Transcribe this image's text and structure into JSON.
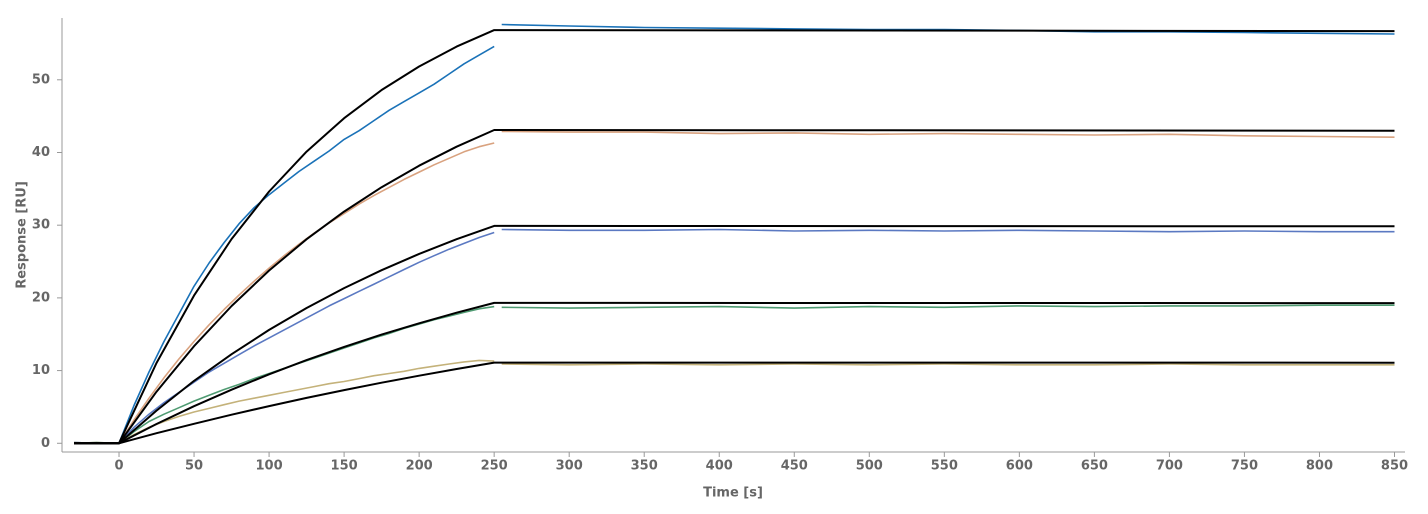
{
  "chart_data": {
    "type": "line",
    "xlabel": "Time [s]",
    "ylabel": "Response [RU]",
    "xlim": [
      -38,
      857
    ],
    "ylim": [
      -1.2,
      58.5
    ],
    "xticks": [
      0,
      50,
      100,
      150,
      200,
      250,
      300,
      350,
      400,
      450,
      500,
      550,
      600,
      650,
      700,
      750,
      800,
      850
    ],
    "yticks": [
      0,
      10,
      20,
      30,
      40,
      50
    ],
    "x": [
      -30,
      -15,
      0,
      10,
      20,
      30,
      40,
      50,
      60,
      70,
      80,
      90,
      100,
      110,
      120,
      130,
      140,
      150,
      160,
      170,
      180,
      190,
      200,
      210,
      220,
      230,
      240,
      250,
      251,
      255,
      300,
      350,
      400,
      450,
      500,
      550,
      600,
      650,
      700,
      750,
      800,
      850
    ],
    "series": [
      {
        "color": "#1a72b8",
        "values": [
          0.1,
          0.0,
          0,
          5.2,
          9.8,
          14.0,
          17.8,
          21.6,
          24.8,
          27.6,
          30.2,
          32.4,
          34.2,
          35.8,
          37.4,
          38.8,
          40.2,
          41.8,
          43.0,
          44.4,
          45.8,
          47.0,
          48.2,
          49.4,
          50.8,
          52.2,
          53.4,
          54.6,
          null,
          57.6,
          57.4,
          57.2,
          57.1,
          57.0,
          56.9,
          56.9,
          56.8,
          56.6,
          56.6,
          56.5,
          56.4,
          56.3
        ]
      },
      {
        "color": "#d9a27f",
        "values": [
          0.0,
          0.1,
          0,
          3.2,
          6.2,
          9.0,
          11.6,
          14.0,
          16.3,
          18.4,
          20.4,
          22.3,
          24.1,
          25.8,
          27.4,
          28.9,
          30.3,
          31.6,
          32.9,
          34.1,
          35.2,
          36.3,
          37.3,
          38.3,
          39.2,
          40.1,
          40.8,
          41.3,
          null,
          42.9,
          42.8,
          42.8,
          42.6,
          42.7,
          42.5,
          42.6,
          42.5,
          42.4,
          42.5,
          42.3,
          42.2,
          42.1
        ]
      },
      {
        "color": "#5b79c2",
        "values": [
          0.1,
          0.0,
          0,
          2.2,
          4.0,
          5.6,
          7.0,
          8.4,
          9.8,
          11.0,
          12.2,
          13.4,
          14.5,
          15.6,
          16.7,
          17.8,
          18.9,
          19.9,
          20.9,
          21.9,
          22.9,
          23.9,
          24.9,
          25.8,
          26.7,
          27.5,
          28.3,
          29.0,
          null,
          29.4,
          29.3,
          29.3,
          29.4,
          29.2,
          29.3,
          29.2,
          29.3,
          29.2,
          29.1,
          29.2,
          29.1,
          29.1
        ]
      },
      {
        "color": "#4f9b72",
        "values": [
          0.0,
          0.1,
          0,
          1.6,
          3.0,
          4.0,
          4.9,
          5.8,
          6.6,
          7.4,
          8.1,
          8.9,
          9.6,
          10.3,
          11.0,
          11.7,
          12.4,
          13.1,
          13.8,
          14.5,
          15.1,
          15.8,
          16.4,
          17.0,
          17.5,
          18.0,
          18.5,
          18.8,
          null,
          18.7,
          18.6,
          18.7,
          18.8,
          18.6,
          18.8,
          18.7,
          18.9,
          18.8,
          18.9,
          18.9,
          19.0,
          19.0
        ]
      },
      {
        "color": "#c4b27a",
        "values": [
          0.1,
          0.0,
          0,
          1.2,
          2.2,
          3.0,
          3.7,
          4.3,
          4.8,
          5.3,
          5.8,
          6.2,
          6.6,
          7.0,
          7.4,
          7.8,
          8.2,
          8.5,
          8.9,
          9.3,
          9.6,
          9.9,
          10.3,
          10.6,
          10.9,
          11.2,
          11.4,
          11.3,
          null,
          10.9,
          10.8,
          10.9,
          10.8,
          10.9,
          10.8,
          10.9,
          10.8,
          10.8,
          10.9,
          10.8,
          10.8,
          10.8
        ]
      }
    ],
    "fit_x": [
      -30,
      0,
      25,
      50,
      75,
      100,
      125,
      150,
      175,
      200,
      225,
      250,
      850
    ],
    "fits": [
      {
        "color": "#000000",
        "values": [
          0,
          0,
          11.04,
          20.32,
          28.1,
          34.63,
          40.12,
          44.72,
          48.59,
          51.83,
          54.56,
          56.84,
          56.7
        ]
      },
      {
        "color": "#000000",
        "values": [
          0,
          0,
          7.1,
          13.36,
          18.89,
          23.77,
          28.07,
          31.87,
          35.22,
          38.18,
          40.79,
          43.09,
          43.0
        ]
      },
      {
        "color": "#000000",
        "values": [
          0,
          0,
          4.5,
          8.58,
          12.26,
          15.59,
          18.61,
          21.34,
          23.81,
          26.05,
          28.07,
          29.9,
          29.85
        ]
      },
      {
        "color": "#000000",
        "values": [
          0,
          0,
          2.65,
          5.1,
          7.37,
          9.49,
          11.44,
          13.26,
          14.95,
          16.51,
          17.96,
          19.31,
          19.28
        ]
      },
      {
        "color": "#000000",
        "values": [
          0,
          0,
          1.38,
          2.68,
          3.93,
          5.11,
          6.24,
          7.31,
          8.33,
          9.3,
          10.22,
          11.1,
          11.08
        ]
      }
    ]
  }
}
